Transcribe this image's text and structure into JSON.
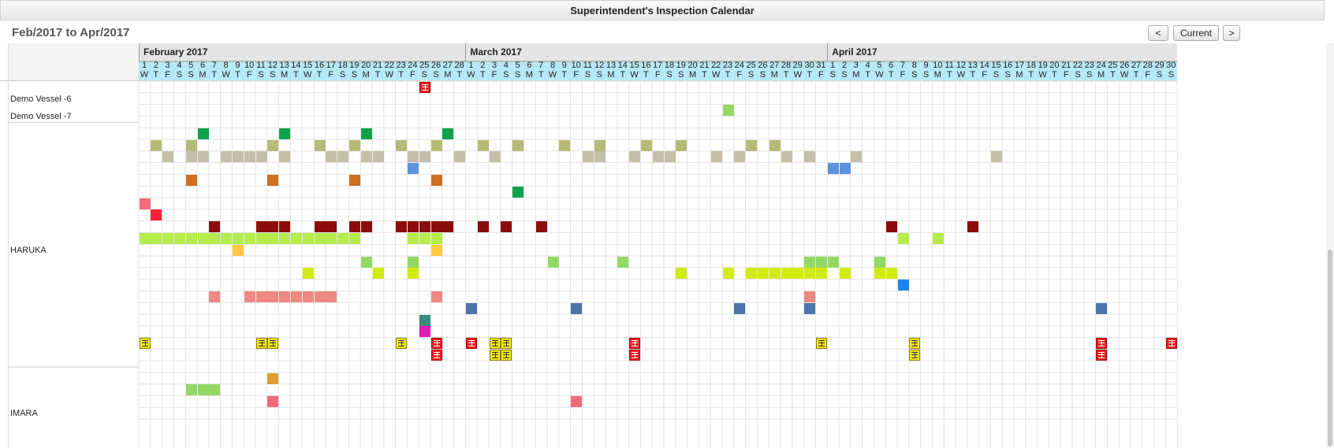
{
  "window": {
    "title": "Superintendent's Inspection Calendar"
  },
  "calendar": {
    "range_label": "Feb/2017 to Apr/2017",
    "prev_label": "<",
    "current_label": "Current",
    "next_label": ">",
    "months": [
      {
        "name": "February 2017",
        "start_index": 0,
        "days": 28
      },
      {
        "name": "March 2017",
        "start_index": 28,
        "days": 31
      },
      {
        "name": "April 2017",
        "start_index": 59,
        "days": 30
      }
    ],
    "day_letters": [
      "W",
      "T",
      "F",
      "S",
      "S",
      "M",
      "T"
    ],
    "row_count": 28,
    "vessels": [
      {
        "name": "Demo Vessel -6",
        "label_row": 1
      },
      {
        "name": "Demo Vessel -7",
        "label_row": 2.5
      },
      {
        "name": "HARUKA",
        "label_row": 14
      },
      {
        "name": "IMARA",
        "label_row": 28
      }
    ],
    "colors": {
      "grid_line": "#e2e2e2",
      "day_header_bg": "#b6e9f7",
      "month_header_bg": "#e4e4e4",
      "green": "#0ea24a",
      "olive": "#b5bb76",
      "taupe": "#c4bfa9",
      "blue": "#5c93dc",
      "orange": "#d06f1f",
      "lightgreen": "#92d864",
      "pink": "#f26a78",
      "red": "#ff203a",
      "darkred": "#8b0d0b",
      "lime": "#b4eb4d",
      "yellow": "#ffc840",
      "yellowgreen": "#d0eb10",
      "bright_blue": "#1c84ec",
      "salmon": "#ec8a82",
      "steel": "#4b74a9",
      "teal": "#3a8c81",
      "magenta": "#e020b0",
      "amber": "#db9f32"
    },
    "events": [
      {
        "row": 0,
        "days": [
          24
        ],
        "icon": "red"
      },
      {
        "row": 2,
        "days": [
          50
        ],
        "color": "lightgreen"
      },
      {
        "row": 4,
        "days": [
          5,
          12,
          19,
          26
        ],
        "color": "green"
      },
      {
        "row": 5,
        "days": [
          1,
          4,
          11,
          15,
          18,
          22,
          25,
          29,
          32,
          36,
          39,
          43,
          46,
          52,
          54
        ],
        "color": "olive"
      },
      {
        "row": 6,
        "days": [
          2,
          4,
          5,
          7,
          8,
          9,
          10,
          12,
          16,
          17,
          19,
          20,
          23,
          24,
          27,
          30,
          38,
          39,
          42,
          44,
          45,
          49,
          51,
          55,
          57,
          61,
          73
        ],
        "color": "taupe"
      },
      {
        "row": 7,
        "days": [
          23,
          59,
          60
        ],
        "color": "blue"
      },
      {
        "row": 8,
        "days": [
          4,
          11,
          18,
          25
        ],
        "color": "orange"
      },
      {
        "row": 9,
        "days": [
          32
        ],
        "color": "green"
      },
      {
        "row": 10,
        "days": [
          0
        ],
        "color": "pink"
      },
      {
        "row": 11,
        "days": [
          1
        ],
        "color": "red"
      },
      {
        "row": 12,
        "days": [
          6,
          10,
          11,
          12,
          15,
          16,
          18,
          19,
          22,
          23,
          24,
          25,
          26,
          29,
          31,
          34,
          64,
          71
        ],
        "color": "darkred"
      },
      {
        "row": 13,
        "days": [
          0,
          1,
          2,
          3,
          4,
          5,
          6,
          7,
          8,
          9,
          10,
          11,
          12,
          13,
          14,
          15,
          16,
          17,
          18,
          23,
          24,
          25,
          65,
          68
        ],
        "color": "lime"
      },
      {
        "row": 14,
        "days": [
          8,
          25
        ],
        "color": "yellow"
      },
      {
        "row": 15,
        "days": [
          19,
          23,
          35,
          41,
          57,
          58,
          59,
          63
        ],
        "color": "lightgreen"
      },
      {
        "row": 16,
        "days": [
          14,
          20,
          23,
          46,
          50,
          52,
          53,
          54,
          55,
          56,
          57,
          58,
          60,
          63,
          64
        ],
        "color": "yellowgreen"
      },
      {
        "row": 17,
        "days": [
          65
        ],
        "color": "bright_blue"
      },
      {
        "row": 18,
        "days": [
          6,
          9,
          10,
          11,
          12,
          13,
          14,
          15,
          16,
          25,
          57
        ],
        "color": "salmon"
      },
      {
        "row": 19,
        "days": [
          28,
          37,
          51,
          57,
          82
        ],
        "color": "steel"
      },
      {
        "row": 20,
        "days": [
          24
        ],
        "color": "teal"
      },
      {
        "row": 21,
        "days": [
          24
        ],
        "color": "magenta"
      },
      {
        "row": 22,
        "days": [
          0,
          10,
          11,
          22,
          58,
          66
        ],
        "icon": "yellow"
      },
      {
        "row": 22,
        "days": [
          25,
          28,
          42,
          82,
          88
        ],
        "icon": "red"
      },
      {
        "row": 22,
        "days": [
          30,
          31
        ],
        "icon": "yellow"
      },
      {
        "row": 23,
        "days": [
          25,
          42,
          82
        ],
        "icon": "red"
      },
      {
        "row": 23,
        "days": [
          30,
          31,
          66
        ],
        "icon": "yellow"
      },
      {
        "row": 25,
        "days": [
          11
        ],
        "color": "amber"
      },
      {
        "row": 26,
        "days": [
          4,
          5,
          6
        ],
        "color": "lightgreen"
      },
      {
        "row": 27,
        "days": [
          11,
          37
        ],
        "color": "pink"
      }
    ]
  }
}
